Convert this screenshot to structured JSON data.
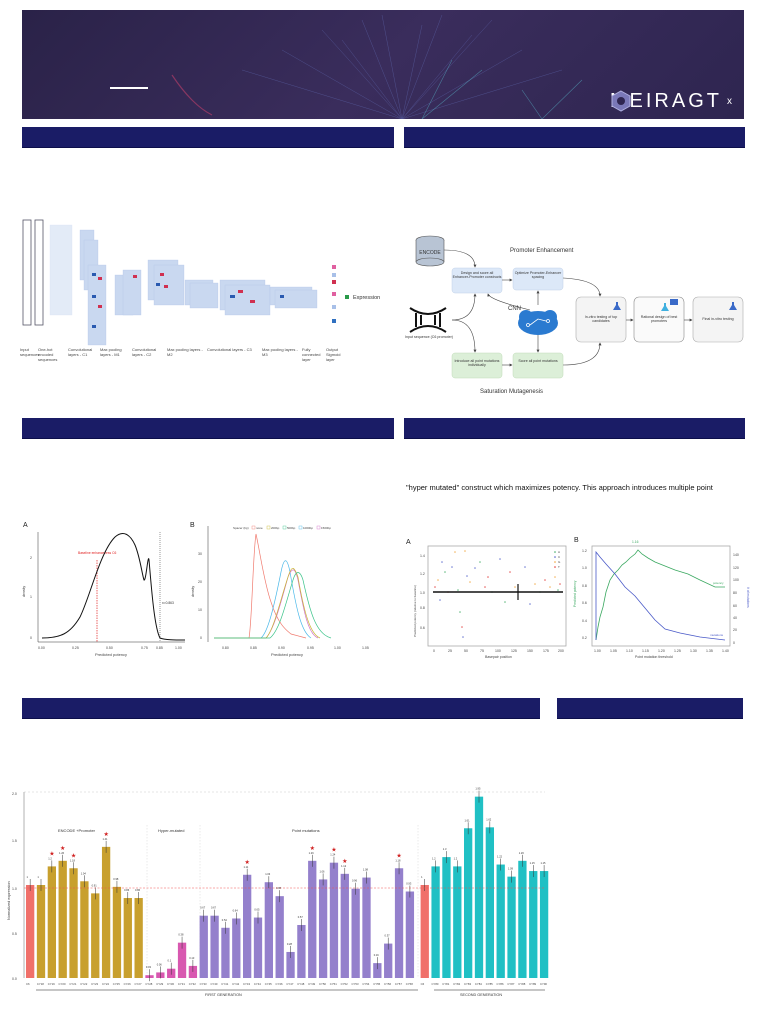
{
  "banner": {
    "logo_text": "MEIRAGT",
    "logo_sub": "x"
  },
  "section_headers": [
    {
      "id": "h1",
      "label": ""
    },
    {
      "id": "h2",
      "label": ""
    },
    {
      "id": "h3",
      "label": ""
    },
    {
      "id": "h4",
      "label": ""
    },
    {
      "id": "h5",
      "label": ""
    },
    {
      "id": "h6",
      "label": ""
    }
  ],
  "cnn_diagram": {
    "stages": [
      "Input sequences",
      "One-hot encoded sequences",
      "Convolutional layers - C1",
      "Max pooling layers - M1",
      "Convolutional layers - C2",
      "Max pooling layers - M2",
      "Convolutional layers - C3",
      "Max pooling layers - M3",
      "Fully connected layer",
      "Output Sigmoid layer"
    ],
    "output_label": "Expression"
  },
  "workflow": {
    "title_top": "Promoter Enhancement",
    "title_bottom": "Saturation Mutagenesis",
    "encode": "ENCODE",
    "input_seq": "Input sequence (C6 promoter)",
    "cnn": "CNN",
    "box_design": "Design and score all Enhancer-Promoter constructs",
    "box_optimize": "Optimize Promoter-Enhancer spacing",
    "box_introduce": "Introduce all point mutations individually",
    "box_score": "Score all point mutations",
    "box_invitro": "In-vitro testing of top candidates",
    "box_rational": "Rational design of best promoters",
    "box_final": "Final in-vitro testing"
  },
  "intro_text": "\"hyper mutated\" construct which maximizes potency. This approach introduces multiple point",
  "chart_data": [
    {
      "type": "line",
      "panel": "A",
      "title": "",
      "xlabel": "Predicted potency",
      "ylabel": "density",
      "xticks": [
        "0.00",
        "0.25",
        "0.50",
        "0.75",
        "0.85",
        "1.00"
      ],
      "yticks": [
        "0",
        "1",
        "2"
      ],
      "annotations": [
        "Baseline enhancerless C6",
        "x=0.863"
      ],
      "x": [
        0.0,
        0.1,
        0.2,
        0.3,
        0.4,
        0.5,
        0.55,
        0.6,
        0.7,
        0.74,
        0.78,
        0.82,
        0.9,
        1.0
      ],
      "y": [
        0,
        0.05,
        0.3,
        1.0,
        2.0,
        2.55,
        2.6,
        2.5,
        1.9,
        1.35,
        1.8,
        0.3,
        0.02,
        0
      ]
    },
    {
      "type": "line",
      "panel": "B",
      "xlabel": "Predicted potency",
      "ylabel": "density",
      "xticks": [
        "0.80",
        "0.85",
        "0.90",
        "0.95",
        "1.00",
        "1.05"
      ],
      "yticks": [
        "0",
        "10",
        "20",
        "30"
      ],
      "legend_title": "Spacer (bp)",
      "series": [
        {
          "name": "none",
          "color": "#f07a6e",
          "peak_x": 0.855,
          "peak_y": 37
        },
        {
          "name": "200bp",
          "color": "#c8b830",
          "peak_x": 0.915,
          "peak_y": 24
        },
        {
          "name": "500bp",
          "color": "#3cc48a",
          "peak_x": 0.925,
          "peak_y": 23
        },
        {
          "name": "1000bp",
          "color": "#4ab8e8",
          "peak_x": 0.9,
          "peak_y": 27
        },
        {
          "name": "1500bp",
          "color": "#d070c8",
          "peak_x": 0.912,
          "peak_y": 23
        }
      ]
    },
    {
      "type": "scatter",
      "panel": "A",
      "xlabel": "Basepair position",
      "ylabel": "Predicted potency (relative to baseline)",
      "xticks": [
        "0",
        "25",
        "50",
        "75",
        "100",
        "125",
        "150",
        "175",
        "200"
      ],
      "yticks": [
        "0.6",
        "0.8",
        "1.0",
        "1.2",
        "1.4"
      ],
      "legend": [
        "A",
        "C",
        "G",
        "T"
      ],
      "baseline": 1.0
    },
    {
      "type": "line",
      "panel": "B",
      "xlabel": "Point mutation threshold",
      "ylabel": "Predicted potency",
      "ylabel_right": "# of mutations",
      "xticks": [
        "1.00",
        "1.05",
        "1.10",
        "1.15",
        "1.20",
        "1.25",
        "1.30",
        "1.35",
        "1.40"
      ],
      "yticks": [
        "0.2",
        "0.4",
        "0.6",
        "0.8",
        "1.0",
        "1.2"
      ],
      "yticks_right": [
        "0",
        "20",
        "40",
        "60",
        "80",
        "100",
        "120",
        "140"
      ],
      "annotation": "1.16",
      "series": [
        {
          "name": "potency",
          "color": "#3aa860"
        },
        {
          "name": "mutations",
          "color": "#4a5ac8"
        }
      ]
    },
    {
      "type": "bar",
      "ylabel": "Normalized expression",
      "ylim": [
        0,
        2.0
      ],
      "yticks": [
        "0.0",
        "0.5",
        "1.0",
        "1.5",
        "2.0"
      ],
      "reference_line": 1.0,
      "group_labels": [
        "ENCODE +Promoter",
        "Hyper-mutated",
        "Point mutations"
      ],
      "generation_labels": [
        "FIRST GENERATION",
        "SECOND GENERATION"
      ],
      "categories": [
        "C6",
        "CY18",
        "CY19",
        "CY20",
        "CY21",
        "CY22",
        "CY23",
        "CY24",
        "CY25",
        "CY26",
        "CY27",
        "CY28",
        "CY29",
        "CY30",
        "CY31",
        "CY32",
        "CY33",
        "CY40",
        "CY41",
        "CY42",
        "CY43",
        "CY44",
        "CY45",
        "CY46",
        "CY47",
        "CY48",
        "CY49",
        "CY50",
        "CY51",
        "CY52",
        "CY53",
        "CY54",
        "CY55",
        "CY56",
        "CY57",
        "CY58",
        "C6",
        "CY80",
        "CY81",
        "CY82",
        "CY83",
        "CY84",
        "CY85",
        "CY86",
        "CY87",
        "CY88",
        "CY89",
        "CY90"
      ],
      "values": [
        1,
        1,
        1.2,
        1.26,
        1.18,
        1.04,
        0.91,
        1.41,
        0.98,
        0.86,
        0.86,
        0.03,
        0.06,
        0.1,
        0.38,
        0.13,
        0.67,
        0.67,
        0.54,
        0.64,
        1.11,
        0.65,
        1.03,
        0.88,
        0.28,
        0.57,
        1.26,
        1.06,
        1.24,
        1.12,
        0.96,
        1.08,
        0.16,
        0.37,
        1.18,
        0.93,
        1,
        1.2,
        1.3,
        1.2,
        1.61,
        1.95,
        1.62,
        1.22,
        1.09,
        1.26,
        1.15,
        1.15
      ],
      "colors": [
        "#f0706a",
        "#c8a02e",
        "#c8a02e",
        "#c8a02e",
        "#c8a02e",
        "#c8a02e",
        "#c8a02e",
        "#c8a02e",
        "#c8a02e",
        "#c8a02e",
        "#c8a02e",
        "#d858b0",
        "#d858b0",
        "#d858b0",
        "#d858b0",
        "#d858b0",
        "#9480cc",
        "#9480cc",
        "#9480cc",
        "#9480cc",
        "#9480cc",
        "#9480cc",
        "#9480cc",
        "#9480cc",
        "#9480cc",
        "#9480cc",
        "#9480cc",
        "#9480cc",
        "#9480cc",
        "#9480cc",
        "#9480cc",
        "#9480cc",
        "#9480cc",
        "#9480cc",
        "#9480cc",
        "#9480cc",
        "#f0706a",
        "#20c0c4",
        "#20c0c4",
        "#20c0c4",
        "#20c0c4",
        "#20c0c4",
        "#20c0c4",
        "#20c0c4",
        "#20c0c4",
        "#20c0c4",
        "#20c0c4",
        "#20c0c4"
      ],
      "stars": [
        2,
        3,
        4,
        7,
        20,
        26,
        28,
        29,
        34
      ]
    }
  ]
}
